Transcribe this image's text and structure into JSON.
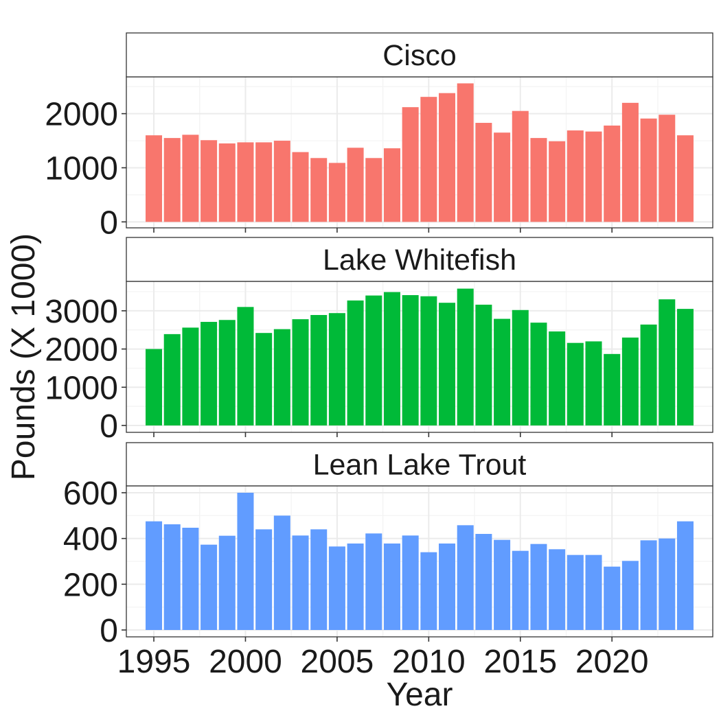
{
  "chart_data": {
    "type": "bar",
    "xlabel": "Year",
    "ylabel": "Pounds (X 1000)",
    "x": [
      1995,
      1996,
      1997,
      1998,
      1999,
      2000,
      2001,
      2002,
      2003,
      2004,
      2005,
      2006,
      2007,
      2008,
      2009,
      2010,
      2011,
      2012,
      2013,
      2014,
      2015,
      2016,
      2017,
      2018,
      2019,
      2020,
      2021,
      2022,
      2023,
      2024
    ],
    "x_ticks": [
      1995,
      2000,
      2005,
      2010,
      2015,
      2020
    ],
    "xlim": [
      1993.5,
      2025.5
    ],
    "grid": true,
    "legend": "none",
    "panels": [
      {
        "title": "Cisco",
        "color": "#F8766D",
        "ylim": [
          -110,
          2680
        ],
        "y_ticks": [
          0,
          1000,
          2000
        ],
        "values": [
          1600,
          1550,
          1610,
          1510,
          1450,
          1470,
          1470,
          1500,
          1290,
          1180,
          1090,
          1370,
          1180,
          1360,
          2120,
          2310,
          2380,
          2560,
          1830,
          1650,
          2050,
          1550,
          1490,
          1690,
          1670,
          1780,
          2200,
          1910,
          1980,
          1600
        ]
      },
      {
        "title": "Lake Whitefish",
        "color": "#00BA38",
        "ylim": [
          -180,
          3770
        ],
        "y_ticks": [
          0,
          1000,
          2000,
          3000
        ],
        "values": [
          2000,
          2390,
          2560,
          2710,
          2760,
          3100,
          2420,
          2520,
          2780,
          2890,
          2940,
          3270,
          3400,
          3490,
          3410,
          3380,
          3210,
          3580,
          3160,
          2790,
          3020,
          2690,
          2460,
          2160,
          2200,
          1870,
          2300,
          2640,
          3300,
          3050
        ]
      },
      {
        "title": "Lean Lake Trout",
        "color": "#619CFF",
        "ylim": [
          -30,
          630
        ],
        "y_ticks": [
          0,
          200,
          400,
          600
        ],
        "values": [
          475,
          462,
          447,
          373,
          412,
          600,
          440,
          500,
          413,
          440,
          365,
          378,
          422,
          378,
          413,
          340,
          378,
          458,
          420,
          394,
          346,
          376,
          353,
          328,
          328,
          277,
          302,
          392,
          400,
          475
        ]
      }
    ]
  }
}
